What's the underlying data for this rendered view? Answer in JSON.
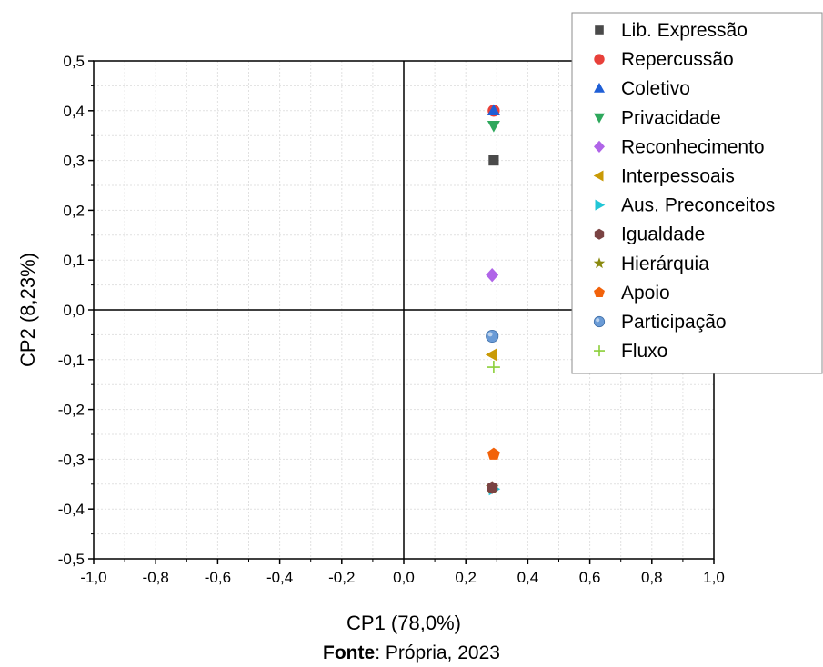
{
  "chart_data": {
    "type": "scatter",
    "xlabel": "CP1 (78,0%)",
    "ylabel": "CP2 (8,23%)",
    "xlim": [
      -1.0,
      1.0
    ],
    "ylim": [
      -0.5,
      0.5
    ],
    "x_ticks": [
      -1.0,
      -0.8,
      -0.6,
      -0.4,
      -0.2,
      0.0,
      0.2,
      0.4,
      0.6,
      0.8,
      1.0
    ],
    "x_tick_labels": [
      "-1,0",
      "-0,8",
      "-0,6",
      "-0,4",
      "-0,2",
      "0,0",
      "0,2",
      "0,4",
      "0,6",
      "0,8",
      "1,0"
    ],
    "y_ticks": [
      0.5,
      0.4,
      0.3,
      0.2,
      0.1,
      0.0,
      -0.1,
      -0.2,
      -0.3,
      -0.4,
      -0.5
    ],
    "y_tick_labels": [
      "0,5",
      "0,4",
      "0,3",
      "0,2",
      "0,1",
      "0,0",
      "-0,1",
      "-0,2",
      "-0,3",
      "-0,4",
      "-0,5"
    ],
    "grid": true,
    "legend_position": "top-right",
    "series": [
      {
        "name": "Lib. Expressão",
        "marker": "square",
        "color": "#4a4a4a",
        "x": 0.29,
        "y": 0.3
      },
      {
        "name": "Repercussão",
        "marker": "circle",
        "color": "#e8403a",
        "x": 0.29,
        "y": 0.4
      },
      {
        "name": "Coletivo",
        "marker": "triangle-up",
        "color": "#1f5fd6",
        "x": 0.29,
        "y": 0.4
      },
      {
        "name": "Privacidade",
        "marker": "triangle-down",
        "color": "#2ea85c",
        "x": 0.29,
        "y": 0.37
      },
      {
        "name": "Reconhecimento",
        "marker": "diamond",
        "color": "#b065e8",
        "x": 0.285,
        "y": 0.07
      },
      {
        "name": "Interpessoais",
        "marker": "triangle-left",
        "color": "#c99a06",
        "x": 0.285,
        "y": -0.09
      },
      {
        "name": "Aus. Preconceitos",
        "marker": "triangle-right",
        "color": "#21c6d6",
        "x": 0.29,
        "y": -0.36
      },
      {
        "name": "Igualdade",
        "marker": "hexagon",
        "color": "#7a4343",
        "x": 0.285,
        "y": -0.357
      },
      {
        "name": "Hierárquia",
        "marker": "star",
        "color": "#8a8a10",
        "x": 0.285,
        "y": -0.357
      },
      {
        "name": "Apoio",
        "marker": "pentagon",
        "color": "#f2620a",
        "x": 0.29,
        "y": -0.29
      },
      {
        "name": "Participação",
        "marker": "circle-shaded",
        "color": "#6a9bd6",
        "x": 0.285,
        "y": -0.053
      },
      {
        "name": "Fluxo",
        "marker": "plus",
        "color": "#8ccf3a",
        "x": 0.29,
        "y": -0.115
      }
    ]
  },
  "source": {
    "label": "Fonte",
    "text": ": Própria, 2023"
  }
}
